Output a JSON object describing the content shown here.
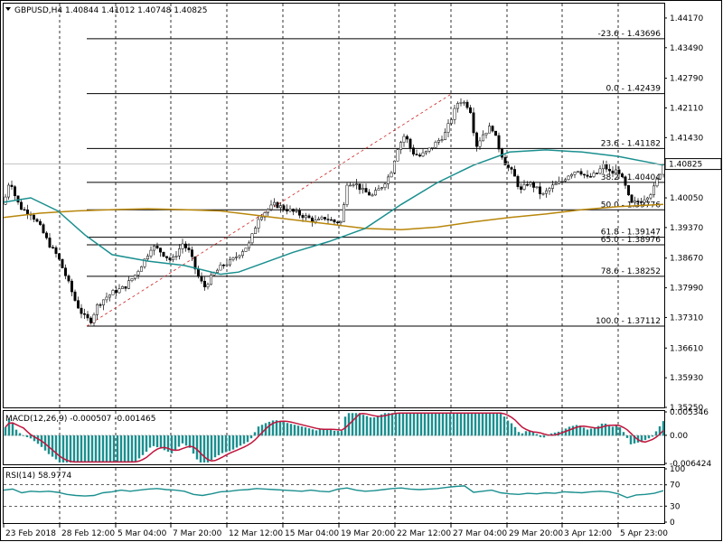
{
  "chart_data": {
    "type": "candlestick",
    "symbol_header": "GBPUSD,H4  1.40844 1.41012 1.40748 1.40825",
    "current_price": "1.40825",
    "y_axis_ticks": [
      "1.44170",
      "1.43490",
      "1.42790",
      "1.42110",
      "1.41430",
      "1.40050",
      "1.39370",
      "1.38670",
      "1.37990",
      "1.37310",
      "1.36610",
      "1.35930",
      "1.35250"
    ],
    "ylim": [
      1.3525,
      1.445
    ],
    "x_axis_ticks": [
      "23 Feb 2018",
      "28 Feb 12:00",
      "5 Mar 04:00",
      "7 Mar 20:00",
      "12 Mar 12:00",
      "15 Mar 04:00",
      "19 Mar 20:00",
      "22 Mar 12:00",
      "27 Mar 04:00",
      "29 Mar 20:00",
      "3 Apr 12:00",
      "5 Apr 23:00"
    ],
    "fibonacci_levels": [
      {
        "label": "-23.6 - 1.43696",
        "value": 1.43696
      },
      {
        "label": "0.0 - 1.42439",
        "value": 1.42439
      },
      {
        "label": "23.6 - 1.41182",
        "value": 1.41182
      },
      {
        "label": "38.2 - 1.40404",
        "value": 1.40404
      },
      {
        "label": "50.0 - 1.39776",
        "value": 1.39776
      },
      {
        "label": "61.8 - 1.39147",
        "value": 1.39147
      },
      {
        "label": "65.0 - 1.38976",
        "value": 1.38976
      },
      {
        "label": "78.6 - 1.38252",
        "value": 1.38252
      },
      {
        "label": "100.0 - 1.37112",
        "value": 1.37112
      }
    ],
    "price_path": [
      [
        0,
        1.399
      ],
      [
        7,
        1.405
      ],
      [
        14,
        1.4
      ],
      [
        20,
        1.398
      ],
      [
        30,
        1.397
      ],
      [
        40,
        1.394
      ],
      [
        50,
        1.39
      ],
      [
        60,
        1.387
      ],
      [
        70,
        1.382
      ],
      [
        80,
        1.3765
      ],
      [
        88,
        1.3735
      ],
      [
        96,
        1.3722
      ],
      [
        104,
        1.376
      ],
      [
        112,
        1.3775
      ],
      [
        122,
        1.379
      ],
      [
        134,
        1.38
      ],
      [
        146,
        1.383
      ],
      [
        158,
        1.387
      ],
      [
        164,
        1.3895
      ],
      [
        172,
        1.3885
      ],
      [
        186,
        1.386
      ],
      [
        198,
        1.39
      ],
      [
        206,
        1.388
      ],
      [
        214,
        1.383
      ],
      [
        222,
        1.38
      ],
      [
        232,
        1.383
      ],
      [
        242,
        1.385
      ],
      [
        252,
        1.386
      ],
      [
        262,
        1.388
      ],
      [
        272,
        1.39
      ],
      [
        282,
        1.396
      ],
      [
        290,
        1.3975
      ],
      [
        300,
        1.399
      ],
      [
        312,
        1.398
      ],
      [
        324,
        1.397
      ],
      [
        336,
        1.396
      ],
      [
        346,
        1.395
      ],
      [
        356,
        1.396
      ],
      [
        366,
        1.395
      ],
      [
        374,
        1.395
      ],
      [
        380,
        1.404
      ],
      [
        388,
        1.404
      ],
      [
        398,
        1.402
      ],
      [
        408,
        1.401
      ],
      [
        418,
        1.403
      ],
      [
        428,
        1.406
      ],
      [
        436,
        1.412
      ],
      [
        444,
        1.415
      ],
      [
        452,
        1.411
      ],
      [
        460,
        1.41
      ],
      [
        468,
        1.411
      ],
      [
        478,
        1.413
      ],
      [
        488,
        1.415
      ],
      [
        496,
        1.419
      ],
      [
        504,
        1.423
      ],
      [
        512,
        1.422
      ],
      [
        518,
        1.42
      ],
      [
        522,
        1.412
      ],
      [
        530,
        1.415
      ],
      [
        540,
        1.417
      ],
      [
        548,
        1.412
      ],
      [
        556,
        1.408
      ],
      [
        564,
        1.406
      ],
      [
        572,
        1.402
      ],
      [
        580,
        1.404
      ],
      [
        588,
        1.403
      ],
      [
        596,
        1.401
      ],
      [
        606,
        1.403
      ],
      [
        616,
        1.404
      ],
      [
        626,
        1.406
      ],
      [
        636,
        1.407
      ],
      [
        646,
        1.405
      ],
      [
        656,
        1.406
      ],
      [
        664,
        1.408
      ],
      [
        672,
        1.406
      ],
      [
        680,
        1.407
      ],
      [
        688,
        1.403
      ],
      [
        694,
        1.399
      ],
      [
        700,
        1.3995
      ],
      [
        706,
        1.4
      ],
      [
        712,
        1.401
      ],
      [
        718,
        1.402
      ],
      [
        724,
        1.405
      ],
      [
        730,
        1.4082
      ]
    ],
    "ma_fast": [
      [
        0,
        1.3995
      ],
      [
        30,
        1.4005
      ],
      [
        60,
        1.3975
      ],
      [
        90,
        1.392
      ],
      [
        120,
        1.3875
      ],
      [
        160,
        1.386
      ],
      [
        200,
        1.385
      ],
      [
        240,
        1.383
      ],
      [
        260,
        1.3835
      ],
      [
        280,
        1.385
      ],
      [
        320,
        1.388
      ],
      [
        360,
        1.3905
      ],
      [
        400,
        1.3935
      ],
      [
        440,
        1.399
      ],
      [
        480,
        1.404
      ],
      [
        520,
        1.408
      ],
      [
        560,
        1.411
      ],
      [
        600,
        1.4115
      ],
      [
        640,
        1.411
      ],
      [
        680,
        1.41
      ],
      [
        730,
        1.408
      ]
    ],
    "ma_slow": [
      [
        0,
        1.396
      ],
      [
        40,
        1.397
      ],
      [
        80,
        1.3975
      ],
      [
        120,
        1.3978
      ],
      [
        160,
        1.398
      ],
      [
        200,
        1.3978
      ],
      [
        240,
        1.3975
      ],
      [
        280,
        1.3965
      ],
      [
        320,
        1.3955
      ],
      [
        360,
        1.3945
      ],
      [
        400,
        1.3935
      ],
      [
        440,
        1.3932
      ],
      [
        480,
        1.3938
      ],
      [
        520,
        1.395
      ],
      [
        560,
        1.396
      ],
      [
        600,
        1.3968
      ],
      [
        640,
        1.3978
      ],
      [
        680,
        1.3985
      ],
      [
        730,
        1.399
      ]
    ],
    "macd": {
      "header": "MACD(12,26,9) -0.000507 -0.001465",
      "y_ticks": [
        "0.005346",
        "0.00",
        "-0.006424"
      ],
      "ylim": [
        -0.006424,
        0.005346
      ]
    },
    "rsi": {
      "header": "RSI(14) 58.9774",
      "y_ticks": [
        "100",
        "70",
        "30",
        "0"
      ],
      "levels": [
        70,
        30
      ],
      "values": [
        [
          0,
          60
        ],
        [
          10,
          62
        ],
        [
          20,
          55
        ],
        [
          30,
          58
        ],
        [
          40,
          57
        ],
        [
          50,
          58
        ],
        [
          60,
          56
        ],
        [
          70,
          52
        ],
        [
          80,
          50
        ],
        [
          90,
          49
        ],
        [
          100,
          50
        ],
        [
          110,
          55
        ],
        [
          120,
          57
        ],
        [
          130,
          60
        ],
        [
          140,
          58
        ],
        [
          150,
          60
        ],
        [
          160,
          62
        ],
        [
          170,
          63
        ],
        [
          180,
          61
        ],
        [
          190,
          60
        ],
        [
          200,
          58
        ],
        [
          210,
          52
        ],
        [
          220,
          50
        ],
        [
          230,
          53
        ],
        [
          240,
          57
        ],
        [
          250,
          58
        ],
        [
          260,
          60
        ],
        [
          270,
          61
        ],
        [
          280,
          63
        ],
        [
          290,
          62
        ],
        [
          300,
          61
        ],
        [
          310,
          60
        ],
        [
          320,
          59
        ],
        [
          330,
          58
        ],
        [
          340,
          60
        ],
        [
          350,
          58
        ],
        [
          360,
          57
        ],
        [
          370,
          62
        ],
        [
          380,
          64
        ],
        [
          390,
          60
        ],
        [
          400,
          58
        ],
        [
          410,
          59
        ],
        [
          420,
          61
        ],
        [
          430,
          63
        ],
        [
          440,
          64
        ],
        [
          450,
          62
        ],
        [
          460,
          61
        ],
        [
          470,
          62
        ],
        [
          480,
          63
        ],
        [
          490,
          65
        ],
        [
          500,
          67
        ],
        [
          510,
          68
        ],
        [
          520,
          56
        ],
        [
          530,
          58
        ],
        [
          540,
          60
        ],
        [
          550,
          55
        ],
        [
          560,
          53
        ],
        [
          570,
          52
        ],
        [
          580,
          54
        ],
        [
          590,
          53
        ],
        [
          600,
          55
        ],
        [
          610,
          54
        ],
        [
          620,
          57
        ],
        [
          630,
          56
        ],
        [
          640,
          55
        ],
        [
          650,
          57
        ],
        [
          660,
          58
        ],
        [
          670,
          57
        ],
        [
          680,
          53
        ],
        [
          690,
          46
        ],
        [
          700,
          51
        ],
        [
          710,
          52
        ],
        [
          720,
          54
        ],
        [
          730,
          59
        ]
      ]
    }
  },
  "colors": {
    "candle": "#008b8b",
    "ma_fast": "#1b8f8f",
    "ma_slow": "#b8860b",
    "macd_hist": "#1b8f8f",
    "macd_signal": "#c0143c",
    "rsi": "#1b8f8f",
    "fib": "#000000",
    "grid": "#000000"
  }
}
